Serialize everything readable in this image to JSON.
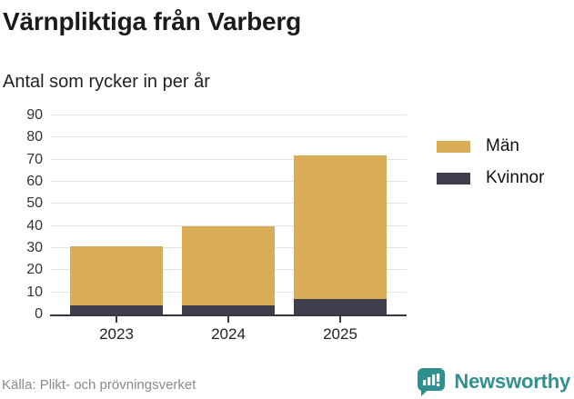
{
  "header": {
    "title": "Värnpliktiga från Varberg",
    "subtitle": "Antal som rycker in per år"
  },
  "chart_data": {
    "type": "bar",
    "stacked": true,
    "title": "Värnpliktiga från Varberg",
    "subtitle": "Antal som rycker in per år",
    "categories": [
      "2023",
      "2024",
      "2025"
    ],
    "series": [
      {
        "name": "Män",
        "color": "#D9AC58",
        "values": [
          27,
          36,
          65
        ]
      },
      {
        "name": "Kvinnor",
        "color": "#3E3E4D",
        "values": [
          4,
          4,
          7
        ]
      }
    ],
    "stack_totals": [
      31,
      40,
      72
    ],
    "xlabel": "",
    "ylabel": "",
    "yticks": [
      0,
      10,
      20,
      30,
      40,
      50,
      60,
      70,
      80,
      90
    ],
    "ylim": [
      0,
      92
    ],
    "grid": true,
    "legend_position": "right",
    "colors": {
      "grid": "#E4E4E4",
      "axis": "#383844",
      "tick_label": "#333333"
    }
  },
  "footer": {
    "source": "Källa: Plikt- och prövningsverket",
    "brand": "Newsworthy",
    "brand_color": "#2F908F"
  }
}
